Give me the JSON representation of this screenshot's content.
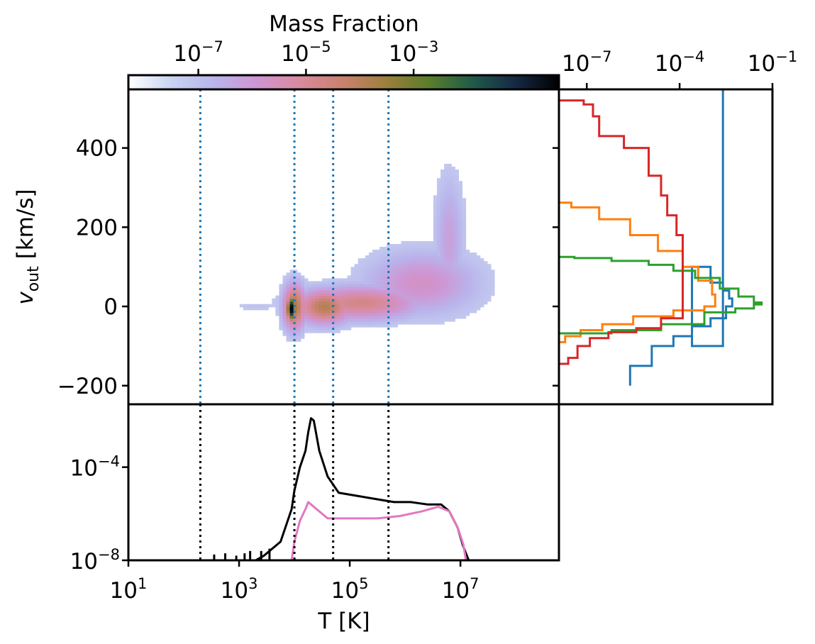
{
  "chart_data": [
    {
      "panel": "main-2d-histogram",
      "type": "heatmap",
      "xlabel": "T [K]",
      "ylabel_main": "v",
      "ylabel_sub": "out",
      "ylabel_unit": "[km/s]",
      "x_scale": "log",
      "xlim_log10": [
        1,
        8.78
      ],
      "ylim": [
        -247,
        548
      ],
      "yticks": [
        {
          "value": -200,
          "label": "−200"
        },
        {
          "value": 0,
          "label": "0"
        },
        {
          "value": 200,
          "label": "200"
        },
        {
          "value": 400,
          "label": "400"
        }
      ],
      "vlines_log10_T": [
        2.3,
        4.0,
        4.7,
        5.7
      ],
      "blobs": [
        {
          "log10T": 6.8,
          "v": 170,
          "sx": 0.18,
          "sy": 110,
          "level": 0.18
        },
        {
          "log10T": 6.3,
          "v": 60,
          "sx": 0.7,
          "sy": 55,
          "level": 0.25
        },
        {
          "log10T": 5.2,
          "v": 10,
          "sx": 0.75,
          "sy": 30,
          "level": 0.38
        },
        {
          "log10T": 4.55,
          "v": 0,
          "sx": 0.35,
          "sy": 30,
          "level": 0.5
        },
        {
          "log10T": 4.0,
          "v": 0,
          "sx": 0.14,
          "sy": 40,
          "level": 0.55
        },
        {
          "log10T": 3.95,
          "v": -5,
          "sx": 0.06,
          "sy": 22,
          "level": 1.0
        },
        {
          "log10T": 3.3,
          "v": 0,
          "sx": 0.35,
          "sy": 8,
          "level": 0.06
        }
      ],
      "grid": false
    },
    {
      "panel": "colorbar",
      "type": "colorbar",
      "title": "Mass Fraction",
      "scale": "log",
      "range_log10": [
        -8.3,
        -0.3
      ],
      "ticks": [
        {
          "exp": -7,
          "base": "10",
          "power": "−7"
        },
        {
          "exp": -5,
          "base": "10",
          "power": "−5"
        },
        {
          "exp": -3,
          "base": "10",
          "power": "−3"
        }
      ],
      "colormap": [
        "#ffffff",
        "#c7d3f0",
        "#b9b4ec",
        "#cf95d2",
        "#d98a9c",
        "#c8826c",
        "#9c7f3c",
        "#597e2c",
        "#1f5a4a",
        "#162844",
        "#000000"
      ]
    },
    {
      "panel": "right-velocity-histograms",
      "type": "line",
      "x_scale": "log",
      "xlim_log10": [
        -7.9,
        -1
      ],
      "ylim": [
        -247,
        548
      ],
      "top_ticks": [
        {
          "exp": -7,
          "base": "10",
          "power": "−7"
        },
        {
          "exp": -4,
          "base": "10",
          "power": "−4"
        },
        {
          "exp": -1,
          "base": "10",
          "power": "−1"
        }
      ],
      "series": [
        {
          "color": "#1f77b4",
          "points": [
            [
              -2.6,
              560
            ],
            [
              -2.6,
              -100
            ],
            [
              -3.6,
              100
            ],
            [
              -3.0,
              60
            ],
            [
              -2.6,
              40
            ],
            [
              -2.4,
              20
            ],
            [
              -2.3,
              0
            ],
            [
              -2.5,
              -30
            ],
            [
              -3.0,
              -50
            ],
            [
              -3.6,
              -75
            ],
            [
              -4.2,
              -100
            ],
            [
              -4.9,
              -150
            ],
            [
              -5.6,
              -200
            ]
          ]
        },
        {
          "color": "#ff7f0e",
          "points": [
            [
              -8.0,
              262
            ],
            [
              -7.5,
              250
            ],
            [
              -6.6,
              220
            ],
            [
              -5.6,
              180
            ],
            [
              -4.7,
              140
            ],
            [
              -3.9,
              100
            ],
            [
              -3.4,
              65
            ],
            [
              -2.95,
              30
            ],
            [
              -2.85,
              0
            ],
            [
              -3.2,
              -10
            ],
            [
              -4.2,
              -25
            ],
            [
              -5.5,
              -45
            ],
            [
              -6.5,
              -60
            ],
            [
              -7.2,
              -75
            ],
            [
              -7.7,
              -90
            ],
            [
              -8.0,
              -100
            ]
          ]
        },
        {
          "color": "#2ca02c",
          "points": [
            [
              -8.0,
              125
            ],
            [
              -7.4,
              122
            ],
            [
              -6.2,
              115
            ],
            [
              -5.0,
              105
            ],
            [
              -4.2,
              90
            ],
            [
              -3.5,
              72
            ],
            [
              -2.7,
              45
            ],
            [
              -2.1,
              25
            ],
            [
              -1.6,
              10
            ],
            [
              -1.35,
              5
            ],
            [
              -1.6,
              -5
            ],
            [
              -2.2,
              -15
            ],
            [
              -3.2,
              -45
            ],
            [
              -4.6,
              -60
            ],
            [
              -6.2,
              -68
            ],
            [
              -8.0,
              -75
            ]
          ]
        },
        {
          "color": "#d62728",
          "points": [
            [
              -8.0,
              520
            ],
            [
              -7.1,
              510
            ],
            [
              -6.8,
              480
            ],
            [
              -6.6,
              430
            ],
            [
              -5.8,
              400
            ],
            [
              -5.0,
              330
            ],
            [
              -4.6,
              280
            ],
            [
              -4.4,
              230
            ],
            [
              -4.1,
              180
            ],
            [
              -3.9,
              120
            ],
            [
              -3.9,
              50
            ],
            [
              -3.9,
              0
            ],
            [
              -3.9,
              -30
            ],
            [
              -4.6,
              -55
            ],
            [
              -5.4,
              -65
            ],
            [
              -6.3,
              -80
            ],
            [
              -6.9,
              -100
            ],
            [
              -7.3,
              -130
            ],
            [
              -7.6,
              -145
            ],
            [
              -8.0,
              -145
            ]
          ]
        }
      ]
    },
    {
      "panel": "bottom-temperature-histograms",
      "type": "line",
      "x_scale": "log",
      "y_scale": "log",
      "xlim_log10": [
        1,
        8.78
      ],
      "ylim_log10": [
        -8,
        -1.3
      ],
      "xticks": [
        {
          "exp": 1,
          "base": "10",
          "power": "1"
        },
        {
          "exp": 3,
          "base": "10",
          "power": "3"
        },
        {
          "exp": 5,
          "base": "10",
          "power": "5"
        },
        {
          "exp": 7,
          "base": "10",
          "power": "7"
        }
      ],
      "yticks": [
        {
          "exp": -8,
          "base": "10",
          "power": "−8"
        },
        {
          "exp": -4,
          "base": "10",
          "power": "−4"
        }
      ],
      "vlines_log10_T": [
        2.3,
        4.0,
        4.7,
        5.7
      ],
      "series": [
        {
          "color": "#000000",
          "points": [
            [
              3.3,
              -8.0
            ],
            [
              3.45,
              -7.8
            ],
            [
              3.6,
              -7.5
            ],
            [
              3.75,
              -7.2
            ],
            [
              3.85,
              -6.5
            ],
            [
              3.95,
              -5.8
            ],
            [
              4.0,
              -5.0
            ],
            [
              4.1,
              -4.0
            ],
            [
              4.2,
              -3.3
            ],
            [
              4.25,
              -2.5
            ],
            [
              4.3,
              -1.9
            ],
            [
              4.35,
              -2.0
            ],
            [
              4.45,
              -3.3
            ],
            [
              4.6,
              -4.4
            ],
            [
              4.8,
              -5.1
            ],
            [
              5.3,
              -5.3
            ],
            [
              5.8,
              -5.5
            ],
            [
              6.1,
              -5.5
            ],
            [
              6.4,
              -5.6
            ],
            [
              6.65,
              -5.6
            ],
            [
              6.8,
              -5.9
            ],
            [
              6.95,
              -6.6
            ],
            [
              7.05,
              -7.4
            ],
            [
              7.15,
              -8.0
            ]
          ]
        },
        {
          "color": "#e377c2",
          "points": [
            [
              3.95,
              -8.0
            ],
            [
              4.0,
              -7.2
            ],
            [
              4.1,
              -6.3
            ],
            [
              4.2,
              -5.8
            ],
            [
              4.25,
              -5.5
            ],
            [
              4.3,
              -5.6
            ],
            [
              4.45,
              -5.9
            ],
            [
              4.6,
              -6.2
            ],
            [
              5.0,
              -6.2
            ],
            [
              5.5,
              -6.2
            ],
            [
              5.9,
              -6.1
            ],
            [
              6.3,
              -5.9
            ],
            [
              6.6,
              -5.7
            ],
            [
              6.8,
              -5.9
            ],
            [
              6.95,
              -6.6
            ],
            [
              7.05,
              -7.3
            ],
            [
              7.1,
              -8.0
            ]
          ]
        }
      ]
    }
  ]
}
